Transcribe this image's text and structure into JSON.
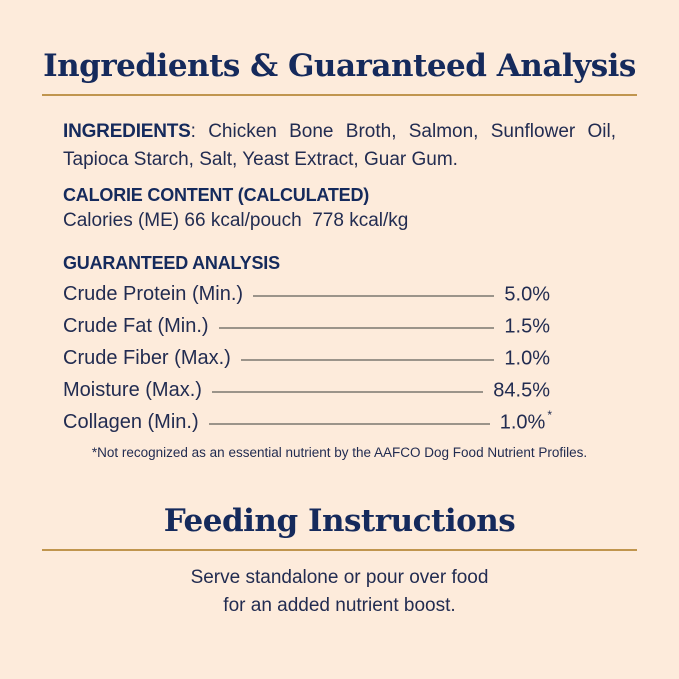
{
  "page": {
    "background_color": "#fdebdb",
    "navy_color": "#152a5c",
    "gold_color": "#c0954e",
    "leader_line_color": "#9b948a"
  },
  "ingredients_analysis": {
    "title": "Ingredients & Guaranteed Analysis",
    "ingredients": {
      "label": "INGREDIENTS",
      "text": ": Chicken Bone Broth, Salmon, Sunflower Oil, Tapioca Starch, Salt, Yeast Extract, Guar Gum."
    },
    "calorie_content": {
      "heading": "CALORIE CONTENT (CALCULATED)",
      "line": "Calories (ME) 66 kcal/pouch  778 kcal/kg"
    },
    "guaranteed_analysis": {
      "heading": "GUARANTEED ANALYSIS",
      "rows": [
        {
          "label": "Crude Protein (Min.)",
          "value": "5.0%",
          "marker": ""
        },
        {
          "label": "Crude Fat (Min.)",
          "value": "1.5%",
          "marker": ""
        },
        {
          "label": "Crude Fiber (Max.)",
          "value": "1.0%",
          "marker": ""
        },
        {
          "label": "Moisture (Max.)",
          "value": "84.5%",
          "marker": ""
        },
        {
          "label": "Collagen (Min.)",
          "value": "1.0%",
          "marker": "*"
        }
      ],
      "footnote": "*Not recognized as an essential nutrient by the AAFCO Dog Food Nutrient Profiles."
    }
  },
  "feeding_instructions": {
    "title": "Feeding Instructions",
    "body_line1": "Serve standalone or pour over food",
    "body_line2": "for an added nutrient boost."
  }
}
